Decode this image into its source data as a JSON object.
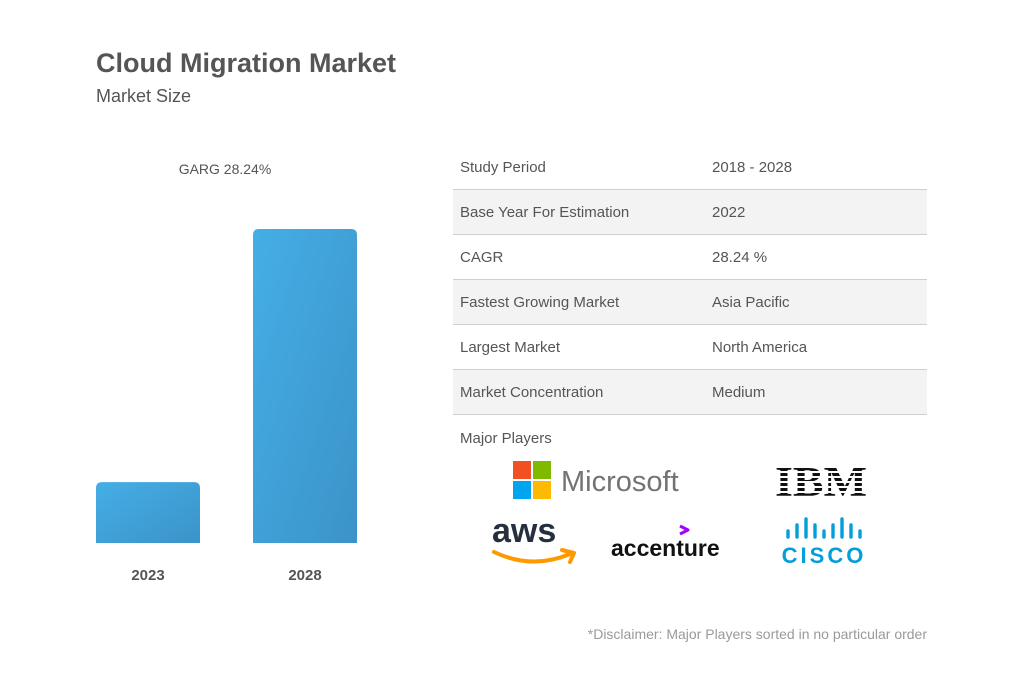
{
  "header": {
    "title": "Cloud Migration Market",
    "subtitle": "Market Size"
  },
  "chart_data": {
    "type": "bar",
    "annotation": "GARG 28.24%",
    "categories": [
      "2023",
      "2028"
    ],
    "values": [
      1,
      5.16
    ],
    "bar_color": "#3fa6de",
    "value_axis_visible": false,
    "grid": false
  },
  "stats": [
    {
      "label": "Study Period",
      "value": "2018 - 2028"
    },
    {
      "label": "Base Year For Estimation",
      "value": "2022"
    },
    {
      "label": "CAGR",
      "value": "28.24 %"
    },
    {
      "label": "Fastest Growing Market",
      "value": "Asia Pacific"
    },
    {
      "label": "Largest Market",
      "value": "North America"
    },
    {
      "label": "Market Concentration",
      "value": "Medium"
    }
  ],
  "players": {
    "heading": "Major Players",
    "logos": [
      {
        "name": "Microsoft",
        "icon": "microsoft-logo"
      },
      {
        "name": "IBM",
        "icon": "ibm-logo"
      },
      {
        "name": "aws",
        "icon": "aws-logo"
      },
      {
        "name": "accenture",
        "icon": "accenture-logo"
      },
      {
        "name": "cisco",
        "icon": "cisco-logo"
      }
    ]
  },
  "disclaimer": "*Disclaimer: Major Players sorted in no particular order",
  "colors": {
    "text": "#555555",
    "bar": "#3fa6de",
    "row_alt": "#f3f3f3",
    "microsoft_red": "#f25022",
    "microsoft_green": "#7fba00",
    "microsoft_blue": "#00a4ef",
    "microsoft_yellow": "#ffb900",
    "aws_orange": "#ff9900",
    "accenture_purple": "#a100ff",
    "cisco_blue": "#049fd9"
  }
}
